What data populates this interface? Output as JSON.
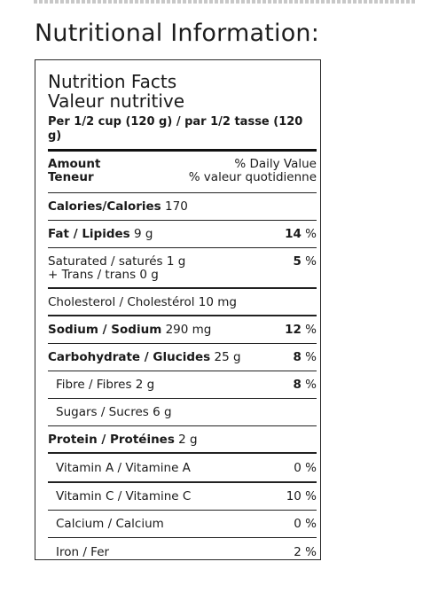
{
  "page": {
    "heading": "Nutritional Information:"
  },
  "label": {
    "title_en": "Nutrition Facts",
    "title_fr": "Valeur nutritive",
    "serving": "Per 1/2 cup (120 g) / par 1/2 tasse (120 g)",
    "amount_en": "Amount",
    "amount_fr": "Teneur",
    "dv_en": "% Daily Value",
    "dv_fr": "% valeur quotidienne",
    "calories_label": "Calories/Calories",
    "calories_value": "170",
    "fat_label": "Fat / Lipides",
    "fat_amount": "9 g",
    "fat_pct_num": "14",
    "fat_pct_sign": "%",
    "sat_line": "Saturated / saturés 1 g",
    "trans_line": "+ Trans / trans 0 g",
    "sat_pct_num": "5",
    "sat_pct_sign": "%",
    "cholesterol": "Cholesterol / Cholestérol 10 mg",
    "sodium_label": "Sodium / Sodium",
    "sodium_amount": "290 mg",
    "sodium_pct_num": "12",
    "sodium_pct_sign": "%",
    "carb_label": "Carbohydrate / Glucides",
    "carb_amount": "25 g",
    "carb_pct_num": "8",
    "carb_pct_sign": "%",
    "fibre_line": "Fibre / Fibres 2 g",
    "fibre_pct_num": "8",
    "fibre_pct_sign": "%",
    "sugars_line": "Sugars / Sucres 6 g",
    "protein_label": "Protein / Protéines",
    "protein_amount": "2 g",
    "vitamins": [
      {
        "name": "Vitamin A / Vitamine A",
        "pct": "0 %"
      },
      {
        "name": "Vitamin C / Vitamine C",
        "pct": "10 %"
      },
      {
        "name": "Calcium / Calcium",
        "pct": "0 %"
      },
      {
        "name": "Iron / Fer",
        "pct": "2 %"
      }
    ]
  }
}
